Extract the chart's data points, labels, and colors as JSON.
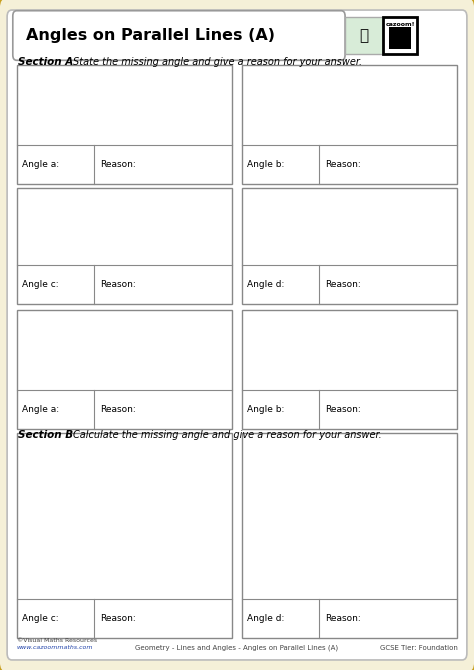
{
  "title": "Angles on Parallel Lines (A)",
  "bg_outer": "#f5f0d8",
  "bg_inner": "#ffffff",
  "border_color": "#c8a020",
  "section_a_label": "Section A",
  "section_a_text": "State the missing angle and give a reason for your answer.",
  "section_b_label": "Section B",
  "section_b_text": "Calculate the missing angle and give a reason for your answer.",
  "footer_left1": "©Visual Maths Resources",
  "footer_left2": "www.cazoommaths.com",
  "footer_center": "Geometry - Lines and Angles - Angles on Parallel Lines (A)",
  "footer_right": "GCSE Tier: Foundation",
  "angle_labels_A": [
    "Angle a:",
    "Angle b:",
    "Angle c:",
    "Angle d:"
  ],
  "angle_labels_B": [
    "Angle a:",
    "Angle b:",
    "Angle c:",
    "Angle d:"
  ]
}
